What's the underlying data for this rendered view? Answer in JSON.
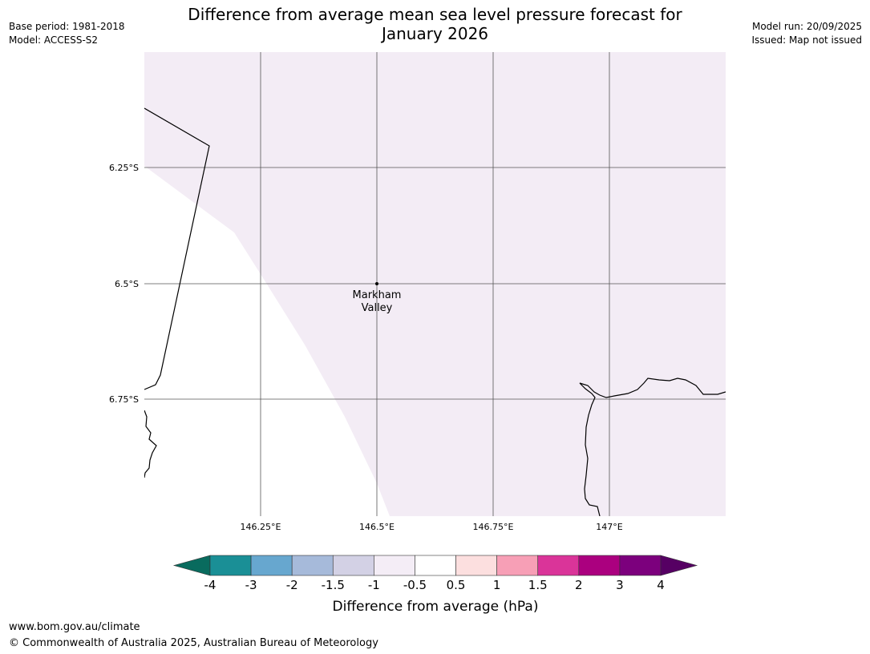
{
  "header": {
    "title_line1": "Difference from average mean sea level pressure forecast for",
    "title_line2": "January 2026",
    "base_period": "Base period: 1981-2018",
    "model": "Model: ACCESS-S2",
    "model_run": "Model run: 20/09/2025",
    "issued": "Issued: Map not issued"
  },
  "map": {
    "longitude_labels": [
      "146.25°E",
      "146.5°E",
      "146.75°E",
      "147°E"
    ],
    "latitude_labels": [
      "6.25°S",
      "6.5°S",
      "6.75°S"
    ],
    "place_name_line1": "Markham",
    "place_name_line2": "Valley",
    "fill_color": "#f3ecf5"
  },
  "colorbar": {
    "title": "Difference from average (hPa)",
    "tick_labels": [
      "-4",
      "-3",
      "-2",
      "-1.5",
      "-1",
      "-0.5",
      "0.5",
      "1",
      "1.5",
      "2",
      "3",
      "4"
    ],
    "low_extend_color": "#096b5e",
    "high_extend_color": "#560063",
    "colors": [
      "#1a8f96",
      "#67a7cf",
      "#a6bada",
      "#d3d1e5",
      "#f4edf6",
      "#ffffff",
      "#fcdfdf",
      "#f79fb6",
      "#da3499",
      "#ab007f",
      "#7c007d"
    ]
  },
  "footer": {
    "url": "www.bom.gov.au/climate",
    "copyright": "© Commonwealth of Australia 2025, Australian Bureau of Meteorology"
  }
}
